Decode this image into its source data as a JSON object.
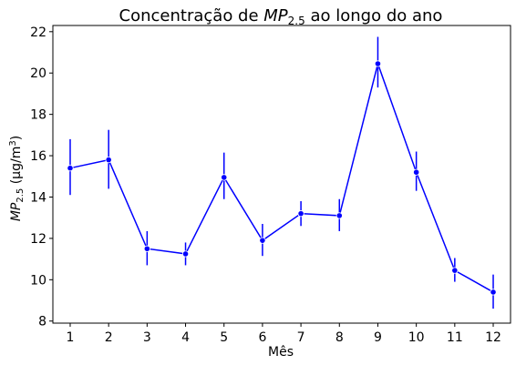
{
  "chart_data": {
    "type": "line",
    "title_prefix": "Concentração de ",
    "title_var": "MP",
    "title_sub": "2.5",
    "title_suffix": " ao longo do ano",
    "xlabel": "Mês",
    "ylabel_var": "MP",
    "ylabel_sub": "2.5",
    "ylabel_unit": " (μg/m",
    "ylabel_exp": "3",
    "ylabel_close": ")",
    "x": [
      1,
      2,
      3,
      4,
      5,
      6,
      7,
      8,
      9,
      10,
      11,
      12
    ],
    "x_tick_labels": [
      "1",
      "2",
      "3",
      "4",
      "5",
      "6",
      "7",
      "8",
      "9",
      "10",
      "11",
      "12"
    ],
    "y_ticks": [
      8,
      10,
      12,
      14,
      16,
      18,
      20,
      22
    ],
    "y_tick_labels": [
      "8",
      "10",
      "12",
      "14",
      "16",
      "18",
      "20",
      "22"
    ],
    "ylim": [
      7.9,
      22.3
    ],
    "xlim": [
      0.55,
      12.45
    ],
    "series": [
      {
        "values": [
          15.4,
          15.8,
          11.5,
          11.25,
          14.95,
          11.9,
          13.2,
          13.1,
          20.45,
          15.2,
          10.45,
          9.4
        ],
        "error_low": [
          14.1,
          14.4,
          10.7,
          10.7,
          13.9,
          11.15,
          12.6,
          12.35,
          19.3,
          14.3,
          9.9,
          8.6
        ],
        "error_high": [
          16.8,
          17.25,
          12.35,
          11.8,
          16.15,
          12.7,
          13.8,
          13.9,
          21.75,
          16.2,
          11.05,
          10.25
        ]
      }
    ],
    "colors": {
      "line": "#0000ff",
      "marker": "#0000ff",
      "axis": "#000000"
    },
    "grid": false
  }
}
